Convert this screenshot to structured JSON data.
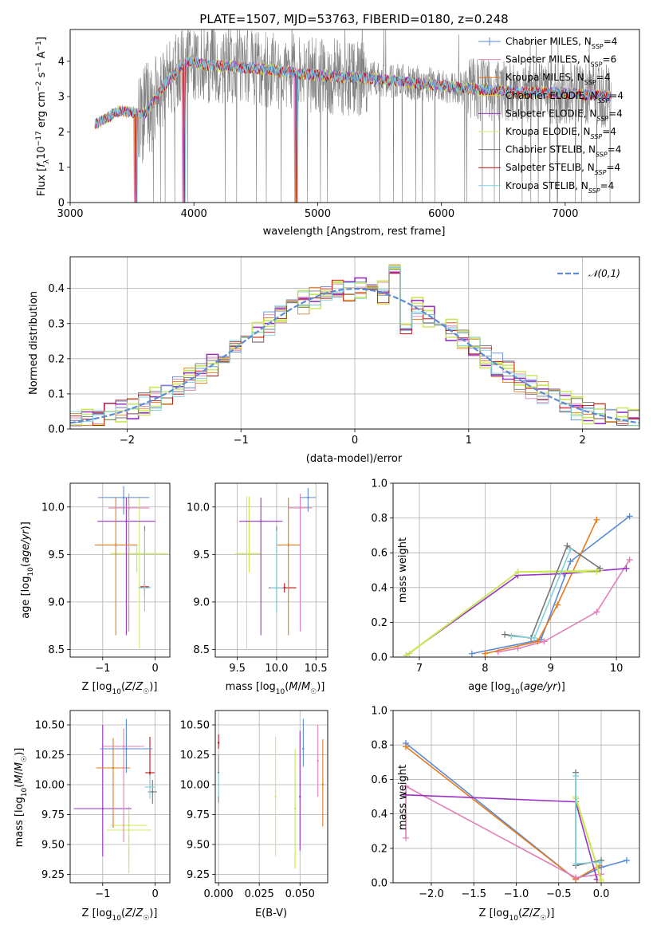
{
  "figure_title": "PLATE=1507, MJD=53763, FIBERID=0180, z=0.248",
  "colors": {
    "chabrier_miles": "#5a8ad8",
    "salpeter_miles": "#e37fb8",
    "kroupa_miles": "#e57a1c",
    "chabrier_elodie": "#c6e84d",
    "salpeter_elodie": "#9a32c4",
    "kroupa_elodie": "#cfe870",
    "chabrier_stelib": "#777777",
    "salpeter_stelib": "#c01010",
    "kroupa_stelib": "#7fd2de",
    "data": "#808080"
  },
  "chart_data": [
    {
      "id": "spectrum",
      "type": "line",
      "title": "PLATE=1507, MJD=53763, FIBERID=0180, z=0.248",
      "xlabel": "wavelength [Angstrom, rest frame]",
      "ylabel": "Flux [f_λ 10^-17 erg cm^-2 s^-1 A^-1]",
      "xlim": [
        3000,
        7600
      ],
      "ylim": [
        0,
        4.9
      ],
      "xticks": [
        "3000",
        "4000",
        "5000",
        "6000",
        "7000"
      ],
      "yticks": [
        "0",
        "1",
        "2",
        "3",
        "4"
      ],
      "legend_position": "top-right",
      "legend": [
        {
          "label": "Chabrier MILES, N_SSP=4",
          "color_key": "chabrier_miles"
        },
        {
          "label": "Salpeter MILES, N_SSP=6",
          "color_key": "salpeter_miles"
        },
        {
          "label": "Kroupa MILES, N_SSP=4",
          "color_key": "kroupa_miles"
        },
        {
          "label": "Chabrier ELODIE, N_SSP=4",
          "color_key": "chabrier_elodie"
        },
        {
          "label": "Salpeter ELODIE, N_SSP=4",
          "color_key": "salpeter_elodie"
        },
        {
          "label": "Kroupa ELODIE, N_SSP=4",
          "color_key": "kroupa_elodie"
        },
        {
          "label": "Chabrier STELIB, N_SSP=4",
          "color_key": "chabrier_stelib"
        },
        {
          "label": "Salpeter STELIB, N_SSP=4",
          "color_key": "salpeter_stelib"
        },
        {
          "label": "Kroupa STELIB, N_SSP=4",
          "color_key": "kroupa_stelib"
        }
      ],
      "data_range": [
        3200,
        7370
      ],
      "continuum": [
        [
          3200,
          2.2
        ],
        [
          3400,
          2.6
        ],
        [
          3600,
          2.5
        ],
        [
          3800,
          3.5
        ],
        [
          3950,
          4.0
        ],
        [
          4100,
          3.9
        ],
        [
          4500,
          3.8
        ],
        [
          5000,
          3.6
        ],
        [
          5500,
          3.5
        ],
        [
          6000,
          3.3
        ],
        [
          6500,
          3.15
        ],
        [
          7000,
          3.1
        ],
        [
          7370,
          3.0
        ]
      ],
      "model_dropouts": [
        3520,
        3910,
        4815
      ]
    },
    {
      "id": "residual-histogram",
      "type": "line",
      "xlabel": "(data-model)/error",
      "ylabel": "Normed distribution",
      "xlim": [
        -2.5,
        2.5
      ],
      "ylim": [
        0,
        0.49
      ],
      "xticks": [
        "−2",
        "−1",
        "0",
        "1",
        "2"
      ],
      "yticks": [
        "0.0",
        "0.1",
        "0.2",
        "0.3",
        "0.4"
      ],
      "grid": true,
      "bin_width": 0.1,
      "reference_curve": "normal(0,1)",
      "legend_position": "top-right",
      "legend": [
        {
          "label": "𝒩(0,1)",
          "color_key": "chabrier_miles"
        }
      ]
    },
    {
      "id": "age-vs-z",
      "type": "scatter",
      "xlabel": "Z [log10(Z/Z☉)]",
      "ylabel": "age [log10(age/yr)]",
      "xlim": [
        -1.62,
        0.28
      ],
      "ylim": [
        8.42,
        10.25
      ],
      "xticks": [
        "−1",
        "0"
      ],
      "yticks": [
        "8.5",
        "9.0",
        "9.5",
        "10.0"
      ],
      "grid": true,
      "points": [
        {
          "key": "chabrier_miles",
          "x": -0.6,
          "y": 10.1,
          "xerr": 0.98,
          "yerr": [
            0.18,
            0.12
          ]
        },
        {
          "key": "salpeter_miles",
          "x": -0.5,
          "y": 9.99,
          "xerr": 0.78,
          "yerr": [
            1.3,
            0.15
          ]
        },
        {
          "key": "kroupa_miles",
          "x": -0.75,
          "y": 9.6,
          "xerr": 0.8,
          "yerr": [
            0.95,
            0.5
          ]
        },
        {
          "key": "salpeter_elodie",
          "x": -0.55,
          "y": 9.85,
          "xerr": 1.1,
          "yerr": [
            1.2,
            0.25
          ]
        },
        {
          "key": "kroupa_elodie",
          "x": -0.3,
          "y": 9.51,
          "xerr": 1.1,
          "yerr": [
            1.0,
            0.6
          ]
        },
        {
          "key": "chabrier_elodie",
          "x": -0.35,
          "y": 9.51,
          "xerr": 1.0,
          "yerr": [
            0.2,
            0.1
          ]
        },
        {
          "key": "chabrier_stelib",
          "x": -0.2,
          "y": 9.15,
          "xerr": 0.2,
          "yerr": [
            0.1,
            0.65
          ]
        },
        {
          "key": "kroupa_stelib",
          "x": -0.2,
          "y": 9.15,
          "xerr": 0.25,
          "yerr": [
            0.25,
            0.6
          ]
        },
        {
          "key": "salpeter_stelib",
          "x": -0.2,
          "y": 9.16,
          "xerr": 0.17,
          "yerr": [
            0.05,
            0.05
          ]
        }
      ]
    },
    {
      "id": "age-vs-mass",
      "type": "scatter",
      "xlabel": "mass [log10(M/M☉)]",
      "ylabel": "",
      "xlim": [
        9.22,
        10.65
      ],
      "ylim": [
        8.42,
        10.25
      ],
      "xticks": [
        "9.5",
        "10.0",
        "10.5"
      ],
      "yticks": [
        "8.5",
        "9.0",
        "9.5",
        "10.0"
      ],
      "grid": true,
      "points": [
        {
          "key": "chabrier_miles",
          "x": 10.4,
          "y": 10.1,
          "xerr": 0.2,
          "yerr": [
            0.15,
            0.1
          ]
        },
        {
          "key": "salpeter_miles",
          "x": 10.3,
          "y": 9.99,
          "xerr": 0.3,
          "yerr": [
            1.3,
            0.15
          ]
        },
        {
          "key": "kroupa_miles",
          "x": 10.15,
          "y": 9.6,
          "xerr": 0.3,
          "yerr": [
            0.95,
            0.5
          ]
        },
        {
          "key": "salpeter_elodie",
          "x": 9.8,
          "y": 9.85,
          "xerr": 0.55,
          "yerr": [
            1.2,
            0.25
          ]
        },
        {
          "key": "kroupa_elodie",
          "x": 9.62,
          "y": 9.51,
          "xerr": 0.3,
          "yerr": [
            1.0,
            0.6
          ]
        },
        {
          "key": "chabrier_elodie",
          "x": 9.65,
          "y": 9.51,
          "xerr": 0.3,
          "yerr": [
            0.2,
            0.6
          ]
        },
        {
          "key": "chabrier_stelib",
          "x": 10.0,
          "y": 9.15,
          "xerr": 0.2,
          "yerr": [
            0.25,
            0.65
          ]
        },
        {
          "key": "kroupa_stelib",
          "x": 10.0,
          "y": 9.15,
          "xerr": 0.15,
          "yerr": [
            0.25,
            0.6
          ]
        },
        {
          "key": "salpeter_stelib",
          "x": 10.1,
          "y": 9.15,
          "xerr": 0.3,
          "yerr": [
            0.05,
            0.05
          ]
        }
      ]
    },
    {
      "id": "weight-vs-age",
      "type": "line",
      "xlabel": "age [log10(age/yr)]",
      "ylabel": "mass weight",
      "xlim": [
        6.6,
        10.35
      ],
      "ylim": [
        0,
        1.0
      ],
      "xticks": [
        "7",
        "8",
        "9",
        "10"
      ],
      "yticks": [
        "0.0",
        "0.2",
        "0.4",
        "0.6",
        "0.8",
        "1.0"
      ],
      "grid": true,
      "series": [
        {
          "key": "chabrier_miles",
          "x": [
            7.8,
            8.85,
            9.3,
            10.2
          ],
          "y": [
            0.02,
            0.1,
            0.55,
            0.81
          ]
        },
        {
          "key": "salpeter_miles",
          "x": [
            8.2,
            8.5,
            8.9,
            9.7,
            10.2
          ],
          "y": [
            0.03,
            0.05,
            0.09,
            0.26,
            0.56
          ]
        },
        {
          "key": "kroupa_miles",
          "x": [
            8.0,
            8.8,
            9.1,
            9.7
          ],
          "y": [
            0.02,
            0.09,
            0.3,
            0.79
          ]
        },
        {
          "key": "salpeter_elodie",
          "x": [
            6.8,
            8.5,
            9.2,
            10.15
          ],
          "y": [
            0.01,
            0.47,
            0.48,
            0.51
          ]
        },
        {
          "key": "kroupa_elodie",
          "x": [
            6.85,
            8.5,
            9.75
          ],
          "y": [
            0.02,
            0.49,
            0.5
          ]
        },
        {
          "key": "chabrier_elodie",
          "x": [
            6.8,
            8.5,
            9.7
          ],
          "y": [
            0.01,
            0.49,
            0.49
          ]
        },
        {
          "key": "chabrier_stelib",
          "x": [
            8.3,
            8.7,
            9.25,
            9.75
          ],
          "y": [
            0.13,
            0.11,
            0.64,
            0.51
          ]
        },
        {
          "key": "kroupa_stelib",
          "x": [
            8.4,
            8.75,
            9.3
          ],
          "y": [
            0.12,
            0.11,
            0.62
          ]
        }
      ]
    },
    {
      "id": "mass-vs-z",
      "type": "scatter",
      "xlabel": "Z [log10(Z/Z☉)]",
      "ylabel": "mass [log10(M/M☉)]",
      "xlim": [
        -1.62,
        0.28
      ],
      "ylim": [
        9.18,
        10.62
      ],
      "xticks": [
        "−1",
        "0"
      ],
      "yticks": [
        "9.25",
        "9.50",
        "9.75",
        "10.00",
        "10.25",
        "10.50"
      ],
      "grid": true,
      "points": [
        {
          "key": "chabrier_miles",
          "x": -0.55,
          "y": 10.3,
          "xerr": 1.0,
          "yerr": [
            0.2,
            0.25
          ]
        },
        {
          "key": "salpeter_miles",
          "x": -0.6,
          "y": 10.32,
          "xerr": 0.78,
          "yerr": [
            0.8,
            0.15
          ]
        },
        {
          "key": "kroupa_miles",
          "x": -0.8,
          "y": 10.14,
          "xerr": 0.65,
          "yerr": [
            0.5,
            0.25
          ]
        },
        {
          "key": "salpeter_elodie",
          "x": -1.0,
          "y": 9.8,
          "xerr": 1.1,
          "yerr": [
            0.4,
            0.7
          ]
        },
        {
          "key": "kroupa_elodie",
          "x": -0.5,
          "y": 9.62,
          "xerr": 0.85,
          "yerr": [
            0.25,
            0.2
          ]
        },
        {
          "key": "chabrier_elodie",
          "x": -0.5,
          "y": 9.66,
          "xerr": 0.7,
          "yerr": [
            0.4,
            0.1
          ]
        },
        {
          "key": "chabrier_stelib",
          "x": -0.05,
          "y": 9.94,
          "xerr": 0.17,
          "yerr": [
            0.1,
            0.1
          ]
        },
        {
          "key": "kroupa_stelib",
          "x": -0.1,
          "y": 9.98,
          "xerr": 0.2,
          "yerr": [
            0.1,
            0.1
          ]
        },
        {
          "key": "salpeter_stelib",
          "x": -0.1,
          "y": 10.1,
          "xerr": 0.18,
          "yerr": [
            0.1,
            0.3
          ]
        }
      ]
    },
    {
      "id": "mass-vs-ebv",
      "type": "scatter",
      "xlabel": "E(B-V)",
      "ylabel": "",
      "xlim": [
        -0.002,
        0.067
      ],
      "ylim": [
        9.18,
        10.62
      ],
      "xticks": [
        "0.000",
        "0.025",
        "0.050"
      ],
      "yticks": [
        "9.25",
        "9.50",
        "9.75",
        "10.00",
        "10.25",
        "10.50"
      ],
      "grid": true,
      "points": [
        {
          "key": "chabrier_miles",
          "x": 0.052,
          "y": 10.3,
          "yerr": [
            0.15,
            0.25
          ]
        },
        {
          "key": "salpeter_miles",
          "x": 0.061,
          "y": 10.2,
          "yerr": [
            0.3,
            0.3
          ]
        },
        {
          "key": "kroupa_miles",
          "x": 0.064,
          "y": 10.0,
          "yerr": [
            0.35,
            0.38
          ]
        },
        {
          "key": "salpeter_elodie",
          "x": 0.05,
          "y": 9.9,
          "yerr": [
            0.45,
            0.55
          ]
        },
        {
          "key": "kroupa_elodie",
          "x": 0.035,
          "y": 9.9,
          "yerr": [
            0.5,
            0.5
          ]
        },
        {
          "key": "chabrier_elodie",
          "x": 0.047,
          "y": 9.8,
          "yerr": [
            0.5,
            0.5
          ]
        },
        {
          "key": "chabrier_stelib",
          "x": 0.0,
          "y": 10.1,
          "yerr": [
            0.25,
            0.15
          ]
        },
        {
          "key": "kroupa_stelib",
          "x": 0.0,
          "y": 10.0,
          "yerr": [
            0.1,
            0.1
          ]
        },
        {
          "key": "salpeter_stelib",
          "x": 0.0,
          "y": 10.35,
          "yerr": [
            0.05,
            0.07
          ]
        }
      ]
    },
    {
      "id": "weight-vs-z",
      "type": "line",
      "xlabel": "Z [log10(Z/Z☉)]",
      "ylabel": "mass weight",
      "xlim": [
        -2.45,
        0.45
      ],
      "ylim": [
        0,
        1.0
      ],
      "xticks": [
        "−2.0",
        "−1.5",
        "−1.0",
        "−0.5",
        "0.0"
      ],
      "yticks": [
        "0.0",
        "0.2",
        "0.4",
        "0.6",
        "0.8",
        "1.0"
      ],
      "grid": true,
      "series": [
        {
          "key": "chabrier_miles",
          "x": [
            -2.3,
            -0.3,
            0.0,
            0.3
          ],
          "y": [
            0.81,
            0.02,
            0.09,
            0.13
          ]
        },
        {
          "key": "kroupa_miles",
          "x": [
            -2.3,
            -0.3,
            -0.02
          ],
          "y": [
            0.79,
            0.02,
            0.1
          ]
        },
        {
          "key": "salpeter_miles",
          "x": [
            -2.3,
            -2.3,
            -0.3,
            0.0
          ],
          "y": [
            0.26,
            0.56,
            0.03,
            0.05
          ]
        },
        {
          "key": "salpeter_elodie",
          "x": [
            -2.3,
            -0.3,
            -0.05
          ],
          "y": [
            0.51,
            0.47,
            0.02
          ]
        },
        {
          "key": "kroupa_elodie",
          "x": [
            -0.3,
            -0.3,
            0.0
          ],
          "y": [
            0.49,
            0.5,
            0.02
          ]
        },
        {
          "key": "chabrier_elodie",
          "x": [
            -0.3,
            0.0
          ],
          "y": [
            0.49,
            0.01
          ]
        },
        {
          "key": "chabrier_stelib",
          "x": [
            -0.3,
            -0.3,
            0.0
          ],
          "y": [
            0.64,
            0.1,
            0.13
          ]
        },
        {
          "key": "kroupa_stelib",
          "x": [
            -0.3,
            -0.3,
            -0.02
          ],
          "y": [
            0.62,
            0.11,
            0.12
          ]
        }
      ]
    }
  ]
}
